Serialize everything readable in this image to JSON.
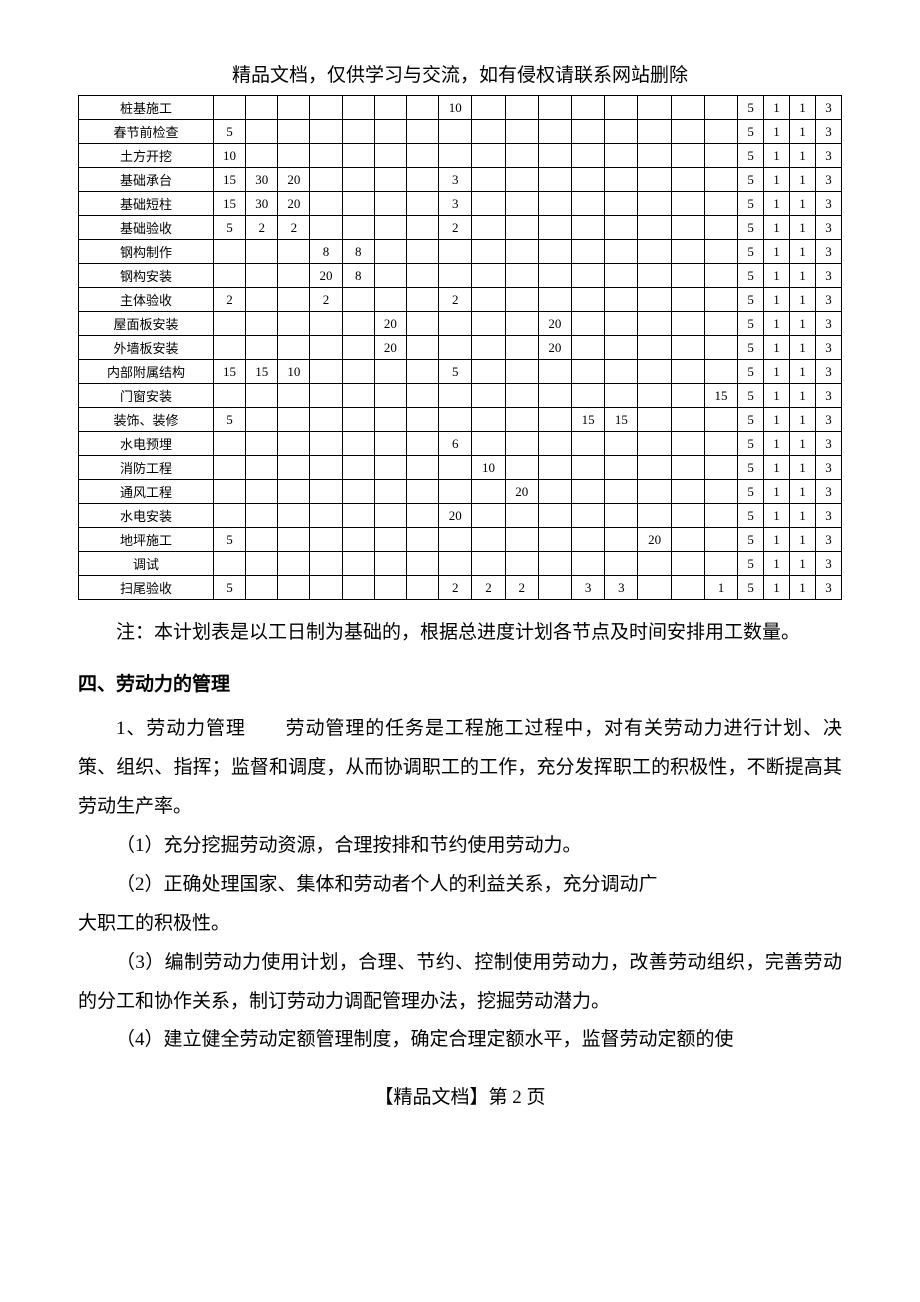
{
  "header_note": "精品文档，仅供学习与交流，如有侵权请联系网站删除",
  "table": {
    "label_col_width": 130,
    "rows": [
      {
        "label": "桩基施工",
        "c": [
          "",
          "",
          "",
          "",
          "",
          "",
          "",
          "10",
          "",
          "",
          "",
          "",
          "",
          "",
          "",
          "",
          "5",
          "1",
          "1",
          "3"
        ]
      },
      {
        "label": "春节前检查",
        "c": [
          "5",
          "",
          "",
          "",
          "",
          "",
          "",
          "",
          "",
          "",
          "",
          "",
          "",
          "",
          "",
          "",
          "5",
          "1",
          "1",
          "3"
        ]
      },
      {
        "label": "土方开挖",
        "c": [
          "10",
          "",
          "",
          "",
          "",
          "",
          "",
          "",
          "",
          "",
          "",
          "",
          "",
          "",
          "",
          "",
          "5",
          "1",
          "1",
          "3"
        ]
      },
      {
        "label": "基础承台",
        "c": [
          "15",
          "30",
          "20",
          "",
          "",
          "",
          "",
          "3",
          "",
          "",
          "",
          "",
          "",
          "",
          "",
          "",
          "5",
          "1",
          "1",
          "3"
        ]
      },
      {
        "label": "基础短柱",
        "c": [
          "15",
          "30",
          "20",
          "",
          "",
          "",
          "",
          "3",
          "",
          "",
          "",
          "",
          "",
          "",
          "",
          "",
          "5",
          "1",
          "1",
          "3"
        ]
      },
      {
        "label": "基础验收",
        "c": [
          "5",
          "2",
          "2",
          "",
          "",
          "",
          "",
          "2",
          "",
          "",
          "",
          "",
          "",
          "",
          "",
          "",
          "5",
          "1",
          "1",
          "3"
        ]
      },
      {
        "label": "钢构制作",
        "c": [
          "",
          "",
          "",
          "8",
          "8",
          "",
          "",
          "",
          "",
          "",
          "",
          "",
          "",
          "",
          "",
          "",
          "5",
          "1",
          "1",
          "3"
        ]
      },
      {
        "label": "钢构安装",
        "c": [
          "",
          "",
          "",
          "20",
          "8",
          "",
          "",
          "",
          "",
          "",
          "",
          "",
          "",
          "",
          "",
          "",
          "5",
          "1",
          "1",
          "3"
        ]
      },
      {
        "label": "主体验收",
        "c": [
          "2",
          "",
          "",
          "2",
          "",
          "",
          "",
          "2",
          "",
          "",
          "",
          "",
          "",
          "",
          "",
          "",
          "5",
          "1",
          "1",
          "3"
        ]
      },
      {
        "label": "屋面板安装",
        "c": [
          "",
          "",
          "",
          "",
          "",
          "20",
          "",
          "",
          "",
          "",
          "20",
          "",
          "",
          "",
          "",
          "",
          "5",
          "1",
          "1",
          "3"
        ]
      },
      {
        "label": "外墙板安装",
        "c": [
          "",
          "",
          "",
          "",
          "",
          "20",
          "",
          "",
          "",
          "",
          "20",
          "",
          "",
          "",
          "",
          "",
          "5",
          "1",
          "1",
          "3"
        ]
      },
      {
        "label": "内部附属结构",
        "c": [
          "15",
          "15",
          "10",
          "",
          "",
          "",
          "",
          "5",
          "",
          "",
          "",
          "",
          "",
          "",
          "",
          "",
          "5",
          "1",
          "1",
          "3"
        ]
      },
      {
        "label": "门窗安装",
        "c": [
          "",
          "",
          "",
          "",
          "",
          "",
          "",
          "",
          "",
          "",
          "",
          "",
          "",
          "",
          "",
          "15",
          "5",
          "1",
          "1",
          "3"
        ]
      },
      {
        "label": "装饰、装修",
        "c": [
          "5",
          "",
          "",
          "",
          "",
          "",
          "",
          "",
          "",
          "",
          "",
          "15",
          "15",
          "",
          "",
          "",
          "5",
          "1",
          "1",
          "3"
        ]
      },
      {
        "label": "水电预埋",
        "c": [
          "",
          "",
          "",
          "",
          "",
          "",
          "",
          "6",
          "",
          "",
          "",
          "",
          "",
          "",
          "",
          "",
          "5",
          "1",
          "1",
          "3"
        ]
      },
      {
        "label": "消防工程",
        "c": [
          "",
          "",
          "",
          "",
          "",
          "",
          "",
          "",
          "10",
          "",
          "",
          "",
          "",
          "",
          "",
          "",
          "5",
          "1",
          "1",
          "3"
        ]
      },
      {
        "label": "通风工程",
        "c": [
          "",
          "",
          "",
          "",
          "",
          "",
          "",
          "",
          "",
          "20",
          "",
          "",
          "",
          "",
          "",
          "",
          "5",
          "1",
          "1",
          "3"
        ]
      },
      {
        "label": "水电安装",
        "c": [
          "",
          "",
          "",
          "",
          "",
          "",
          "",
          "20",
          "",
          "",
          "",
          "",
          "",
          "",
          "",
          "",
          "5",
          "1",
          "1",
          "3"
        ]
      },
      {
        "label": "地坪施工",
        "c": [
          "5",
          "",
          "",
          "",
          "",
          "",
          "",
          "",
          "",
          "",
          "",
          "",
          "",
          "20",
          "",
          "",
          "5",
          "1",
          "1",
          "3"
        ]
      },
      {
        "label": "调试",
        "c": [
          "",
          "",
          "",
          "",
          "",
          "",
          "",
          "",
          "",
          "",
          "",
          "",
          "",
          "",
          "",
          "",
          "5",
          "1",
          "1",
          "3"
        ]
      },
      {
        "label": "扫尾验收",
        "c": [
          "5",
          "",
          "",
          "",
          "",
          "",
          "",
          "2",
          "2",
          "2",
          "",
          "3",
          "3",
          "",
          "",
          "1",
          "5",
          "1",
          "1",
          "3"
        ]
      }
    ]
  },
  "note": "注：本计划表是以工日制为基础的，根据总进度计划各节点及时间安排用工数量。",
  "section4_heading": "四、劳动力的管理",
  "para1": "1、劳动力管理　　劳动管理的任务是工程施工过程中，对有关劳动力进行计划、决策、组织、指挥；监督和调度，从而协调职工的工作，充分发挥职工的积极性，不断提高其劳动生产率。",
  "para2": "（1）充分挖掘劳动资源，合理按排和节约使用劳动力。",
  "para3": "（2）正确处理国家、集体和劳动者个人的利益关系，充分调动广",
  "para3b": "大职工的积极性。",
  "para4": "（3）编制劳动力使用计划，合理、节约、控制使用劳动力，改善劳动组织，完善劳动的分工和协作关系，制订劳动力调配管理办法，挖掘劳动潜力。",
  "para5": "（4）建立健全劳动定额管理制度，确定合理定额水平，监督劳动定额的使",
  "footer": "【精品文档】第 2 页"
}
